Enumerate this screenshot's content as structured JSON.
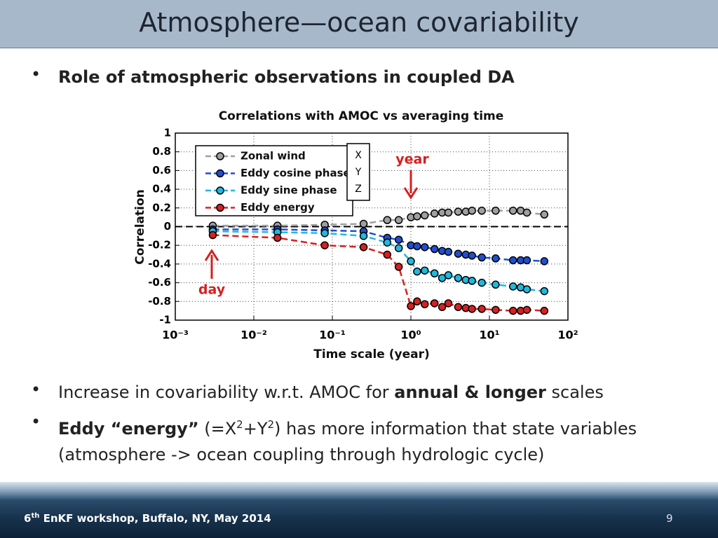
{
  "header": {
    "title": "Atmosphere—ocean covariability"
  },
  "bullets": [
    [
      "Role of atmospheric observations in coupled DA"
    ],
    [
      "Increase in covariability w.r.t. AMOC for ",
      "annual & longer",
      " scales"
    ],
    [
      "Eddy “energy”",
      " (=X",
      "2",
      "+Y",
      "2",
      ") has more information that state variables",
      "(atmosphere -> ocean coupling through hydrologic cycle)"
    ]
  ],
  "chart_data": {
    "type": "line",
    "title": "Correlations with AMOC vs averaging time",
    "x_label": "Time scale (year)",
    "y_label": "Correlation",
    "x_scale": "log",
    "xlim": [
      0.001,
      100
    ],
    "xticks": [
      {
        "value": 0.001,
        "label": "10⁻³"
      },
      {
        "value": 0.01,
        "label": "10⁻²"
      },
      {
        "value": 0.1,
        "label": "10⁻¹"
      },
      {
        "value": 1,
        "label": "10⁰"
      },
      {
        "value": 10,
        "label": "10¹"
      },
      {
        "value": 100,
        "label": "10²"
      }
    ],
    "ylim": [
      -1,
      1
    ],
    "yticks": [
      -1,
      -0.8,
      -0.6,
      -0.4,
      -0.2,
      0,
      0.2,
      0.4,
      0.6,
      0.8,
      1
    ],
    "grid": true,
    "legend": "upper left",
    "x": [
      0.003,
      0.02,
      0.08,
      0.25,
      0.5,
      0.7,
      1,
      1.2,
      1.5,
      2,
      2.5,
      3,
      4,
      5,
      6,
      8,
      12,
      20,
      25,
      30,
      50
    ],
    "series": [
      {
        "name": "Zonal wind",
        "color": "#a0a0a0",
        "values": [
          0.01,
          0.01,
          0.02,
          0.03,
          0.07,
          0.07,
          0.1,
          0.11,
          0.12,
          0.14,
          0.15,
          0.15,
          0.16,
          0.16,
          0.17,
          0.17,
          0.17,
          0.17,
          0.17,
          0.15,
          0.13
        ]
      },
      {
        "name": "Eddy cosine phase",
        "color": "#1f4fd0",
        "values": [
          -0.03,
          -0.03,
          -0.04,
          -0.05,
          -0.12,
          -0.14,
          -0.2,
          -0.21,
          -0.22,
          -0.24,
          -0.26,
          -0.27,
          -0.29,
          -0.3,
          -0.31,
          -0.33,
          -0.34,
          -0.36,
          -0.36,
          -0.36,
          -0.37
        ]
      },
      {
        "name": "Eddy sine phase",
        "color": "#20b8e0",
        "values": [
          -0.05,
          -0.06,
          -0.07,
          -0.1,
          -0.17,
          -0.23,
          -0.37,
          -0.48,
          -0.47,
          -0.5,
          -0.55,
          -0.52,
          -0.55,
          -0.57,
          -0.58,
          -0.6,
          -0.62,
          -0.64,
          -0.65,
          -0.67,
          -0.69
        ]
      },
      {
        "name": "Eddy energy",
        "color": "#d82020",
        "values": [
          -0.09,
          -0.12,
          -0.2,
          -0.22,
          -0.3,
          -0.43,
          -0.85,
          -0.8,
          -0.83,
          -0.82,
          -0.86,
          -0.82,
          -0.86,
          -0.87,
          -0.88,
          -0.88,
          -0.89,
          -0.9,
          -0.9,
          -0.89,
          -0.9
        ]
      }
    ],
    "annotations": [
      "X",
      "Y",
      "Z",
      "year",
      "day"
    ]
  },
  "footer": {
    "text": [
      "6",
      "th",
      " EnKF workshop, Buffalo, NY, May 2014"
    ],
    "page": 9
  }
}
